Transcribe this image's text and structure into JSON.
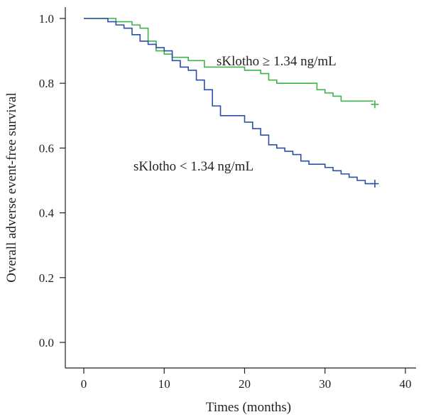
{
  "chart_data": {
    "type": "line",
    "step": true,
    "title": "",
    "xlabel": "Times (months)",
    "ylabel": "Overall adverse event-free survival",
    "xlim": [
      0,
      40
    ],
    "ylim": [
      0.0,
      1.0
    ],
    "x_ticks": [
      0,
      10,
      20,
      30,
      40
    ],
    "y_ticks": [
      0.0,
      0.2,
      0.4,
      0.6,
      0.8,
      1.0
    ],
    "x_tick_labels": [
      "0",
      "10",
      "20",
      "30",
      "40"
    ],
    "y_tick_labels": [
      "0.0",
      "0.2",
      "0.4",
      "0.6",
      "0.8",
      "1.0"
    ],
    "grid": false,
    "legend": "none",
    "series": [
      {
        "name": "sKlotho ≥ 1.34 ng/mL",
        "color": "#3cb44b",
        "x": [
          0,
          4,
          6,
          7,
          8,
          9,
          10,
          11,
          13,
          15,
          17,
          20,
          22,
          23,
          24,
          27,
          29,
          30,
          31,
          32,
          36
        ],
        "y": [
          1.0,
          0.99,
          0.98,
          0.97,
          0.93,
          0.9,
          0.89,
          0.88,
          0.87,
          0.85,
          0.85,
          0.84,
          0.83,
          0.81,
          0.8,
          0.8,
          0.78,
          0.77,
          0.76,
          0.745,
          0.745
        ],
        "censor": [
          {
            "x": 36.2,
            "y": 0.735
          }
        ]
      },
      {
        "name": "sKlotho < 1.34 ng/mL",
        "color": "#2b4fa8",
        "x": [
          0,
          3,
          4,
          5,
          6,
          7,
          8,
          9,
          10,
          11,
          12,
          13,
          14,
          15,
          16,
          17,
          20,
          21,
          22,
          23,
          24,
          25,
          26,
          27,
          28,
          30,
          31,
          32,
          33,
          34,
          35,
          36
        ],
        "y": [
          1.0,
          0.99,
          0.98,
          0.97,
          0.95,
          0.93,
          0.92,
          0.91,
          0.9,
          0.87,
          0.85,
          0.84,
          0.81,
          0.78,
          0.73,
          0.7,
          0.68,
          0.66,
          0.64,
          0.61,
          0.6,
          0.59,
          0.58,
          0.56,
          0.55,
          0.54,
          0.53,
          0.52,
          0.51,
          0.5,
          0.49,
          0.49
        ],
        "censor": [
          {
            "x": 36.2,
            "y": 0.49
          }
        ]
      }
    ],
    "annotations": [
      {
        "id": "upper",
        "text": "sKlotho ≥ 1.34 ng/mL",
        "series": 0
      },
      {
        "id": "lower",
        "text": "sKlotho < 1.34 ng/mL",
        "series": 1
      }
    ]
  }
}
